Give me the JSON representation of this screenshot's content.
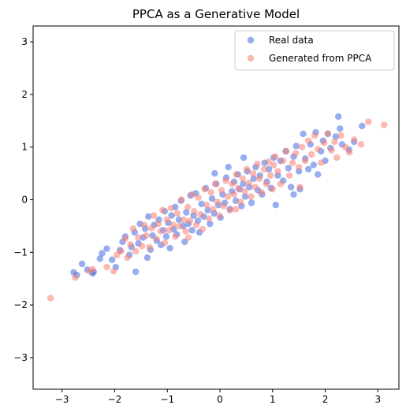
{
  "chart_data": {
    "type": "scatter",
    "title": "PPCA as a Generative Model",
    "xlabel": "",
    "ylabel": "",
    "xlim": [
      -3.55,
      3.4
    ],
    "ylim": [
      -3.6,
      3.3
    ],
    "xticks": [
      -3,
      -2,
      -1,
      0,
      1,
      2,
      3
    ],
    "yticks": [
      -3,
      -2,
      -1,
      0,
      1,
      2,
      3
    ],
    "grid": false,
    "legend_position": "top-right",
    "series": [
      {
        "name": "Real data",
        "color": "#4169e1",
        "points": [
          [
            -2.78,
            -1.38
          ],
          [
            -2.72,
            -1.43
          ],
          [
            -2.62,
            -1.22
          ],
          [
            -2.52,
            -1.33
          ],
          [
            -2.42,
            -1.4
          ],
          [
            -2.4,
            -1.37
          ],
          [
            -2.28,
            -1.12
          ],
          [
            -2.24,
            -1.02
          ],
          [
            -2.15,
            -0.93
          ],
          [
            -2.05,
            -1.14
          ],
          [
            -1.98,
            -1.28
          ],
          [
            -1.9,
            -0.96
          ],
          [
            -1.85,
            -0.8
          ],
          [
            -1.8,
            -0.7
          ],
          [
            -1.72,
            -1.05
          ],
          [
            -1.68,
            -0.9
          ],
          [
            -1.62,
            -0.62
          ],
          [
            -1.6,
            -1.37
          ],
          [
            -1.55,
            -0.83
          ],
          [
            -1.52,
            -0.46
          ],
          [
            -1.46,
            -0.72
          ],
          [
            -1.42,
            -0.55
          ],
          [
            -1.38,
            -1.1
          ],
          [
            -1.36,
            -0.32
          ],
          [
            -1.32,
            -0.95
          ],
          [
            -1.28,
            -0.68
          ],
          [
            -1.25,
            -0.48
          ],
          [
            -1.2,
            -0.78
          ],
          [
            -1.16,
            -0.38
          ],
          [
            -1.12,
            -0.86
          ],
          [
            -1.08,
            -0.58
          ],
          [
            -1.05,
            -0.22
          ],
          [
            -1.02,
            -0.7
          ],
          [
            -0.98,
            -0.44
          ],
          [
            -0.95,
            -0.92
          ],
          [
            -0.92,
            -0.3
          ],
          [
            -0.88,
            -0.56
          ],
          [
            -0.85,
            -0.14
          ],
          [
            -0.82,
            -0.66
          ],
          [
            -0.78,
            -0.38
          ],
          [
            -0.74,
            -0.02
          ],
          [
            -0.7,
            -0.5
          ],
          [
            -0.67,
            -0.8
          ],
          [
            -0.64,
            -0.24
          ],
          [
            -0.6,
            -0.46
          ],
          [
            -0.56,
            0.08
          ],
          [
            -0.53,
            -0.58
          ],
          [
            -0.5,
            -0.3
          ],
          [
            -0.46,
            0.12
          ],
          [
            -0.42,
            -0.4
          ],
          [
            -0.39,
            -0.62
          ],
          [
            -0.35,
            -0.08
          ],
          [
            -0.31,
            -0.32
          ],
          [
            -0.27,
            0.22
          ],
          [
            -0.23,
            -0.2
          ],
          [
            -0.19,
            -0.46
          ],
          [
            -0.15,
            0.02
          ],
          [
            -0.11,
            -0.26
          ],
          [
            -0.07,
            0.3
          ],
          [
            -0.03,
            -0.1
          ],
          [
            0.01,
            -0.34
          ],
          [
            0.05,
            0.1
          ],
          [
            0.09,
            -0.06
          ],
          [
            0.12,
            0.42
          ],
          [
            0.16,
            0.62
          ],
          [
            0.19,
            -0.18
          ],
          [
            0.23,
            0.16
          ],
          [
            0.27,
            0.34
          ],
          [
            0.3,
            -0.02
          ],
          [
            0.34,
            0.48
          ],
          [
            0.37,
            0.2
          ],
          [
            0.41,
            -0.12
          ],
          [
            0.44,
            0.3
          ],
          [
            0.48,
            0.06
          ],
          [
            0.52,
            0.54
          ],
          [
            0.56,
            0.24
          ],
          [
            0.6,
            -0.06
          ],
          [
            0.64,
            0.4
          ],
          [
            0.68,
            0.62
          ],
          [
            0.72,
            0.18
          ],
          [
            0.76,
            0.46
          ],
          [
            0.8,
            0.1
          ],
          [
            0.85,
            0.7
          ],
          [
            0.89,
            0.34
          ],
          [
            0.93,
            0.58
          ],
          [
            0.97,
            0.22
          ],
          [
            1.02,
            0.8
          ],
          [
            1.06,
            -0.1
          ],
          [
            1.1,
            0.46
          ],
          [
            1.15,
            0.74
          ],
          [
            1.2,
            0.36
          ],
          [
            1.25,
            0.92
          ],
          [
            1.3,
            0.6
          ],
          [
            1.35,
            0.24
          ],
          [
            1.4,
            0.82
          ],
          [
            1.45,
            1.02
          ],
          [
            1.5,
            0.54
          ],
          [
            1.52,
            0.2
          ],
          [
            1.58,
            1.25
          ],
          [
            1.62,
            0.78
          ],
          [
            1.68,
            0.58
          ],
          [
            1.72,
            1.05
          ],
          [
            1.78,
            0.66
          ],
          [
            1.82,
            1.28
          ],
          [
            1.86,
            0.48
          ],
          [
            1.92,
            0.92
          ],
          [
            1.96,
            1.12
          ],
          [
            2.0,
            0.74
          ],
          [
            2.05,
            1.25
          ],
          [
            2.1,
            0.98
          ],
          [
            2.2,
            1.2
          ],
          [
            2.25,
            1.58
          ],
          [
            2.28,
            1.35
          ],
          [
            2.32,
            1.05
          ],
          [
            2.45,
            0.95
          ],
          [
            2.55,
            1.1
          ],
          [
            2.7,
            1.4
          ],
          [
            1.4,
            0.1
          ],
          [
            -0.1,
            0.5
          ],
          [
            0.45,
            0.8
          ]
        ]
      },
      {
        "name": "Generated from PPCA",
        "color": "#fa8072",
        "points": [
          [
            -3.22,
            -1.87
          ],
          [
            -2.75,
            -1.48
          ],
          [
            -2.48,
            -1.36
          ],
          [
            -2.42,
            -1.32
          ],
          [
            -2.15,
            -1.28
          ],
          [
            -2.02,
            -1.36
          ],
          [
            -1.96,
            -1.05
          ],
          [
            -1.88,
            -0.98
          ],
          [
            -1.8,
            -0.74
          ],
          [
            -1.76,
            -1.1
          ],
          [
            -1.7,
            -0.85
          ],
          [
            -1.65,
            -0.55
          ],
          [
            -1.6,
            -0.98
          ],
          [
            -1.55,
            -0.72
          ],
          [
            -1.48,
            -0.88
          ],
          [
            -1.44,
            -0.48
          ],
          [
            -1.4,
            -0.68
          ],
          [
            -1.34,
            -0.9
          ],
          [
            -1.3,
            -0.54
          ],
          [
            -1.26,
            -0.3
          ],
          [
            -1.21,
            -0.74
          ],
          [
            -1.17,
            -0.46
          ],
          [
            -1.13,
            -0.6
          ],
          [
            -1.09,
            -0.2
          ],
          [
            -1.05,
            -0.82
          ],
          [
            -1.01,
            -0.38
          ],
          [
            -0.97,
            -0.58
          ],
          [
            -0.93,
            -0.16
          ],
          [
            -0.89,
            -0.48
          ],
          [
            -0.85,
            -0.7
          ],
          [
            -0.81,
            -0.26
          ],
          [
            -0.77,
            -0.5
          ],
          [
            -0.73,
            0.0
          ],
          [
            -0.69,
            -0.38
          ],
          [
            -0.65,
            -0.6
          ],
          [
            -0.61,
            -0.14
          ],
          [
            -0.57,
            -0.4
          ],
          [
            -0.53,
            0.1
          ],
          [
            -0.49,
            -0.22
          ],
          [
            -0.45,
            -0.48
          ],
          [
            -0.41,
            0.04
          ],
          [
            -0.37,
            -0.28
          ],
          [
            -0.33,
            -0.56
          ],
          [
            -0.29,
            0.2
          ],
          [
            -0.25,
            -0.1
          ],
          [
            -0.21,
            -0.36
          ],
          [
            -0.17,
            0.14
          ],
          [
            -0.13,
            -0.18
          ],
          [
            -0.09,
            0.3
          ],
          [
            -0.05,
            -0.04
          ],
          [
            -0.01,
            -0.3
          ],
          [
            0.03,
            0.18
          ],
          [
            0.07,
            -0.12
          ],
          [
            0.11,
            0.36
          ],
          [
            0.15,
            0.06
          ],
          [
            0.19,
            -0.2
          ],
          [
            0.23,
            0.3
          ],
          [
            0.27,
            0.1
          ],
          [
            0.31,
            0.48
          ],
          [
            0.35,
            0.22
          ],
          [
            0.39,
            -0.04
          ],
          [
            0.43,
            0.4
          ],
          [
            0.47,
            0.16
          ],
          [
            0.51,
            0.58
          ],
          [
            0.55,
            0.32
          ],
          [
            0.59,
            0.06
          ],
          [
            0.63,
            0.5
          ],
          [
            0.67,
            0.24
          ],
          [
            0.71,
            0.68
          ],
          [
            0.75,
            0.4
          ],
          [
            0.79,
            0.14
          ],
          [
            0.84,
            0.58
          ],
          [
            0.88,
            0.3
          ],
          [
            0.92,
            0.72
          ],
          [
            0.96,
            0.46
          ],
          [
            1.0,
            0.2
          ],
          [
            1.05,
            0.82
          ],
          [
            1.1,
            0.54
          ],
          [
            1.15,
            0.3
          ],
          [
            1.2,
            0.74
          ],
          [
            1.26,
            0.92
          ],
          [
            1.32,
            0.46
          ],
          [
            1.38,
            0.7
          ],
          [
            1.44,
            0.88
          ],
          [
            1.5,
            0.62
          ],
          [
            1.56,
            1.0
          ],
          [
            1.62,
            0.74
          ],
          [
            1.68,
            1.12
          ],
          [
            1.74,
            0.86
          ],
          [
            1.8,
            1.22
          ],
          [
            1.86,
            0.96
          ],
          [
            1.92,
            0.7
          ],
          [
            1.98,
            1.08
          ],
          [
            2.05,
            1.26
          ],
          [
            2.12,
            0.94
          ],
          [
            2.18,
            1.1
          ],
          [
            2.22,
            0.8
          ],
          [
            2.3,
            1.22
          ],
          [
            2.38,
            1.0
          ],
          [
            2.46,
            0.9
          ],
          [
            2.55,
            1.14
          ],
          [
            2.68,
            1.05
          ],
          [
            2.82,
            1.48
          ],
          [
            3.12,
            1.42
          ],
          [
            1.52,
            0.24
          ],
          [
            1.02,
            0.66
          ],
          [
            0.3,
            -0.18
          ],
          [
            -0.6,
            -0.72
          ]
        ]
      }
    ]
  }
}
